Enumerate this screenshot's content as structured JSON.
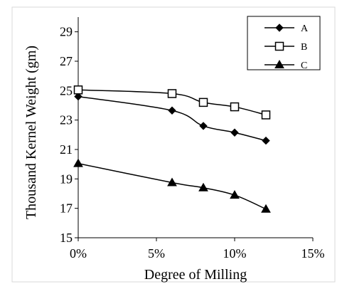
{
  "chart_data": {
    "type": "line",
    "title": "",
    "xlabel": "Degree of Milling",
    "ylabel": "Thousand Kernel Weight (gm)",
    "xlim": [
      0,
      15
    ],
    "ylim": [
      15,
      30
    ],
    "x_ticks": [
      0,
      5,
      10,
      15
    ],
    "x_tick_labels": [
      "0%",
      "5%",
      "10%",
      "15%"
    ],
    "y_ticks": [
      15,
      17,
      19,
      21,
      23,
      25,
      27,
      29
    ],
    "y_tick_labels": [
      "15",
      "17",
      "19",
      "21",
      "23",
      "25",
      "27",
      "29"
    ],
    "grid": false,
    "legend_position": "top-right",
    "series": [
      {
        "name": "A",
        "marker": "diamond",
        "color": "#000000",
        "x": [
          0,
          6,
          8,
          10,
          12
        ],
        "y": [
          24.6,
          23.65,
          22.6,
          22.15,
          21.6
        ]
      },
      {
        "name": "B",
        "marker": "square-open",
        "color": "#000000",
        "x": [
          0,
          6,
          8,
          10,
          12
        ],
        "y": [
          25.05,
          24.8,
          24.2,
          23.9,
          23.35
        ]
      },
      {
        "name": "C",
        "marker": "triangle",
        "color": "#000000",
        "x": [
          0,
          6,
          8,
          10,
          12
        ],
        "y": [
          20.05,
          18.75,
          18.4,
          17.9,
          16.95
        ]
      }
    ]
  }
}
